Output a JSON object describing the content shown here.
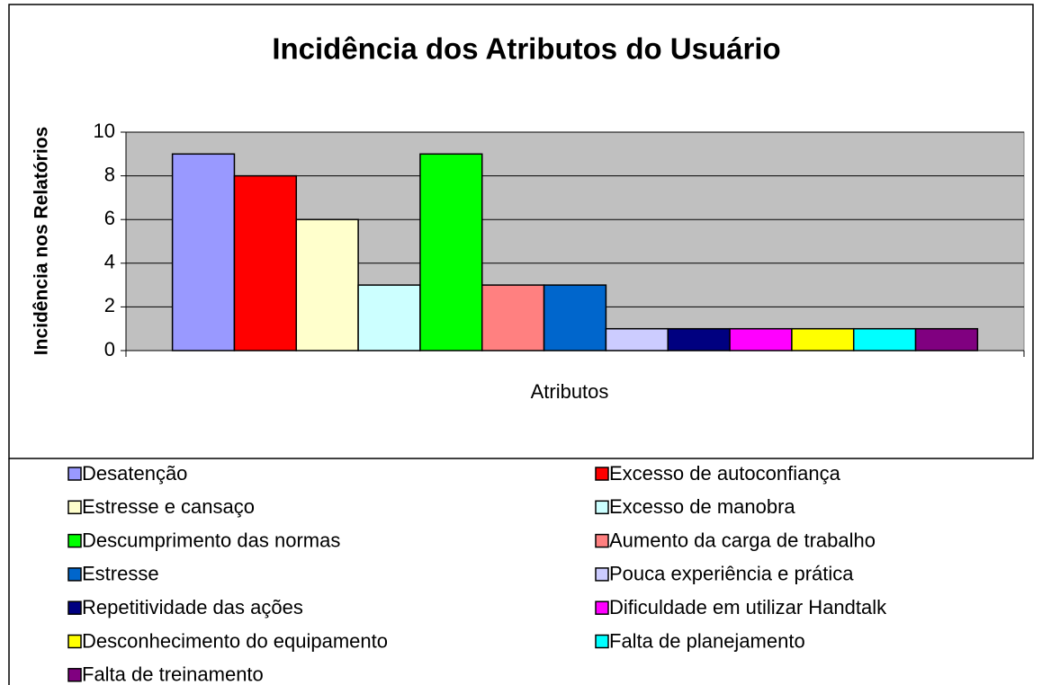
{
  "chart_data": {
    "type": "bar",
    "title": "Incidência dos Atributos do Usuário",
    "y_label": "Incidência nos Relatórios",
    "x_label": "Atributos",
    "categories": [
      null
    ],
    "series": [
      {
        "name": "Desatenção",
        "color": "#9999ff",
        "values": [
          9
        ]
      },
      {
        "name": "Excesso de autoconfiança",
        "color": "#ff0000",
        "values": [
          8
        ]
      },
      {
        "name": "Estresse e cansaço",
        "color": "#ffffcc",
        "values": [
          6
        ]
      },
      {
        "name": "Excesso de manobra",
        "color": "#ccffff",
        "values": [
          3
        ]
      },
      {
        "name": "Descumprimento das normas",
        "color": "#00ff00",
        "values": [
          9
        ]
      },
      {
        "name": "Aumento da carga de trabalho",
        "color": "#ff8080",
        "values": [
          3
        ]
      },
      {
        "name": "Estresse",
        "color": "#0066cc",
        "values": [
          3
        ]
      },
      {
        "name": "Pouca experiência e prática",
        "color": "#ccccff",
        "values": [
          1
        ]
      },
      {
        "name": "Repetitividade das ações",
        "color": "#000080",
        "values": [
          1
        ]
      },
      {
        "name": "Dificuldade em utilizar Handtalk",
        "color": "#ff00ff",
        "values": [
          1
        ]
      },
      {
        "name": "Desconhecimento do equipamento",
        "color": "#ffff00",
        "values": [
          1
        ]
      },
      {
        "name": "Falta de planejamento",
        "color": "#00ffff",
        "values": [
          1
        ]
      },
      {
        "name": "Falta de treinamento",
        "color": "#800080",
        "values": [
          1
        ]
      }
    ],
    "ylim": [
      0,
      10
    ],
    "yticks": [
      0,
      2,
      4,
      6,
      8,
      10
    ],
    "grid": true,
    "legend": "bottom"
  }
}
